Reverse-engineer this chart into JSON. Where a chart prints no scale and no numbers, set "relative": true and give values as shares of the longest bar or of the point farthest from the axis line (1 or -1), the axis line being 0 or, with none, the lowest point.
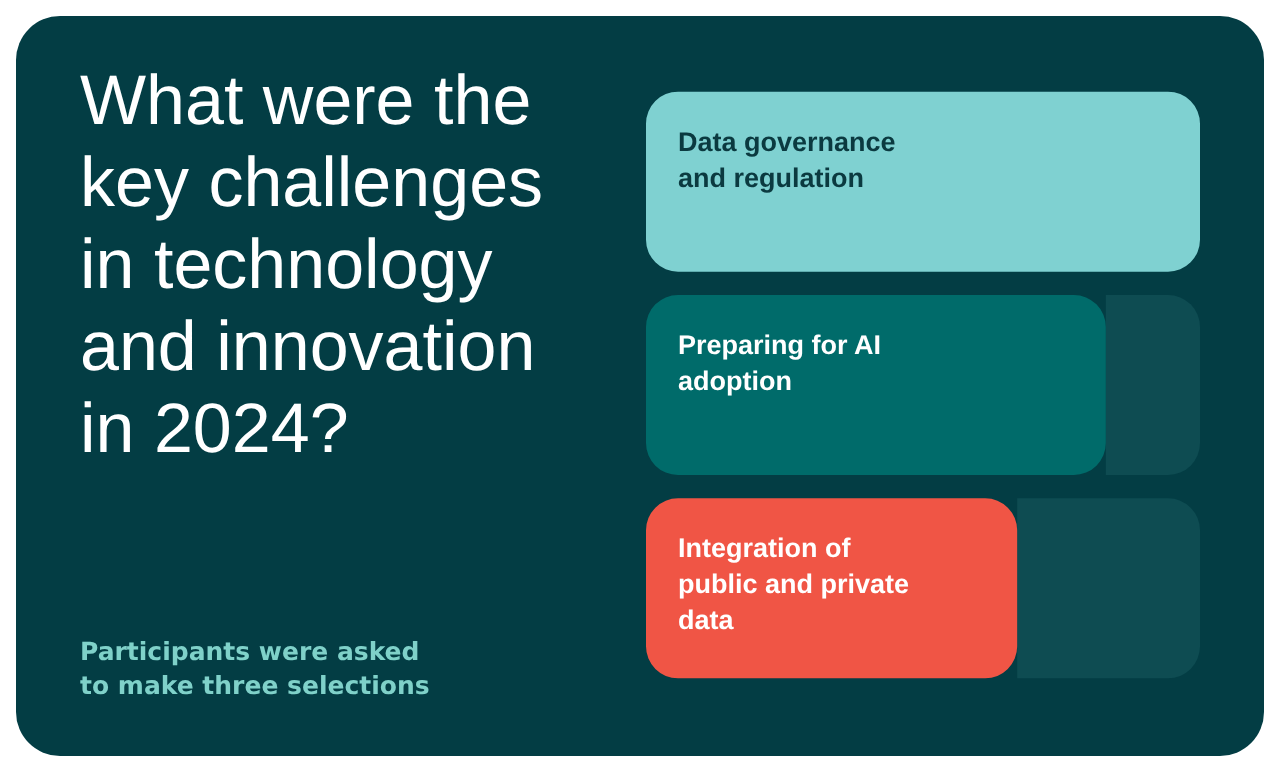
{
  "chart_data": {
    "type": "bar",
    "orientation": "horizontal",
    "relative": true,
    "title": "What were the key challenges in technology and innovation in 2024?",
    "annotations": [
      "Participants were asked to make three selections"
    ],
    "categories": [
      "Data governance and regulation",
      "Preparing for AI adoption",
      "Integration of public and private data"
    ],
    "stacked": true,
    "series": [
      {
        "colors": [
          "#7fd1d1",
          "#006b6a",
          "#f05545"
        ],
        "values": [
          1,
          0.83,
          0.67
        ]
      },
      {
        "color": "#0e4c52",
        "values": [
          null,
          0.17,
          0.33
        ]
      }
    ]
  }
}
